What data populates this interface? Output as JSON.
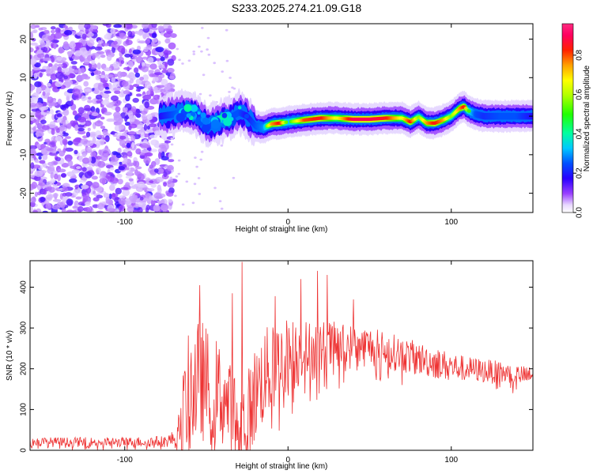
{
  "title": "S233.2025.274.21.09.G18",
  "chart_data": [
    {
      "type": "heatmap",
      "xlabel": "Height of straight line (km)",
      "ylabel": "Frequency (Hz)",
      "xlim": [
        -158,
        150
      ],
      "ylim": [
        -25,
        24
      ],
      "xticks": [
        -100,
        0,
        100
      ],
      "yticks": [
        -20,
        -10,
        0,
        10,
        20
      ],
      "colorbar": {
        "label": "Normalized spectral amplitude",
        "range": [
          0,
          0.96
        ],
        "ticks": [
          0.0,
          0.2,
          0.4,
          0.6,
          0.8
        ],
        "colormap": "rainbow (white-violet-blue-cyan-green-yellow-red-magenta)"
      },
      "ridge": {
        "description": "dominant frequency band vs height",
        "x": [
          -78,
          -70,
          -62,
          -55,
          -48,
          -42,
          -36,
          -30,
          -25,
          -20,
          -15,
          -10,
          -5,
          0,
          10,
          20,
          30,
          40,
          50,
          60,
          70,
          75,
          80,
          85,
          90,
          95,
          100,
          105,
          108,
          110,
          115,
          120,
          130,
          140,
          150
        ],
        "y": [
          0,
          0.5,
          1.5,
          0,
          -2.5,
          -1.5,
          -0.5,
          1.0,
          0,
          -2.5,
          -3.0,
          -2.0,
          -1.8,
          -1.5,
          -1.0,
          -0.5,
          -0.5,
          -0.8,
          -0.8,
          -0.5,
          -0.5,
          -1.5,
          -0.2,
          -1.8,
          -1.8,
          -1.0,
          0,
          2,
          2.5,
          1.5,
          0.5,
          0,
          0,
          0,
          0
        ],
        "amplitude": [
          0.3,
          0.4,
          0.45,
          0.35,
          0.4,
          0.3,
          0.4,
          0.4,
          0.3,
          0.4,
          0.45,
          0.8,
          0.9,
          0.5,
          0.85,
          0.9,
          0.7,
          0.95,
          0.95,
          0.9,
          0.7,
          0.9,
          0.6,
          0.8,
          0.9,
          0.8,
          0.6,
          0.8,
          0.9,
          0.6,
          0.4,
          0.35,
          0.4,
          0.4,
          0.3
        ]
      },
      "noise_region_x": [
        -158,
        -70
      ]
    },
    {
      "type": "line",
      "xlabel": "Height of straight line (km)",
      "ylabel": "SNR (10 * v/v)",
      "xlim": [
        -158,
        150
      ],
      "ylim": [
        0,
        465
      ],
      "xticks": [
        -100,
        0,
        100
      ],
      "yticks": [
        0,
        100,
        200,
        300,
        400
      ],
      "series": [
        {
          "color": "#ee3333",
          "envelope_x": [
            -158,
            -130,
            -100,
            -75,
            -68,
            -62,
            -58,
            -52,
            -48,
            -42,
            -38,
            -34,
            -30,
            -26,
            -20,
            -15,
            -10,
            -5,
            0,
            10,
            20,
            30,
            40,
            50,
            60,
            70,
            80,
            90,
            100,
            110,
            120,
            130,
            140,
            150
          ],
          "envelope_mid": [
            20,
            20,
            20,
            22,
            30,
            130,
            160,
            170,
            150,
            140,
            120,
            90,
            60,
            60,
            140,
            180,
            200,
            220,
            230,
            240,
            250,
            255,
            255,
            255,
            245,
            235,
            225,
            215,
            205,
            200,
            195,
            190,
            185,
            180
          ],
          "envelope_spread": [
            12,
            12,
            12,
            14,
            25,
            140,
            160,
            150,
            140,
            130,
            120,
            110,
            140,
            120,
            120,
            120,
            110,
            100,
            100,
            80,
            70,
            60,
            55,
            50,
            45,
            45,
            40,
            40,
            35,
            30,
            30,
            28,
            25,
            25
          ],
          "peaks": [
            {
              "x": -54,
              "y": 405
            },
            {
              "x": -34,
              "y": 385
            },
            {
              "x": -28,
              "y": 462
            },
            {
              "x": -8,
              "y": 378
            },
            {
              "x": 8,
              "y": 420
            },
            {
              "x": 18,
              "y": 440
            },
            {
              "x": 24,
              "y": 430
            },
            {
              "x": 40,
              "y": 370
            }
          ]
        }
      ]
    }
  ]
}
